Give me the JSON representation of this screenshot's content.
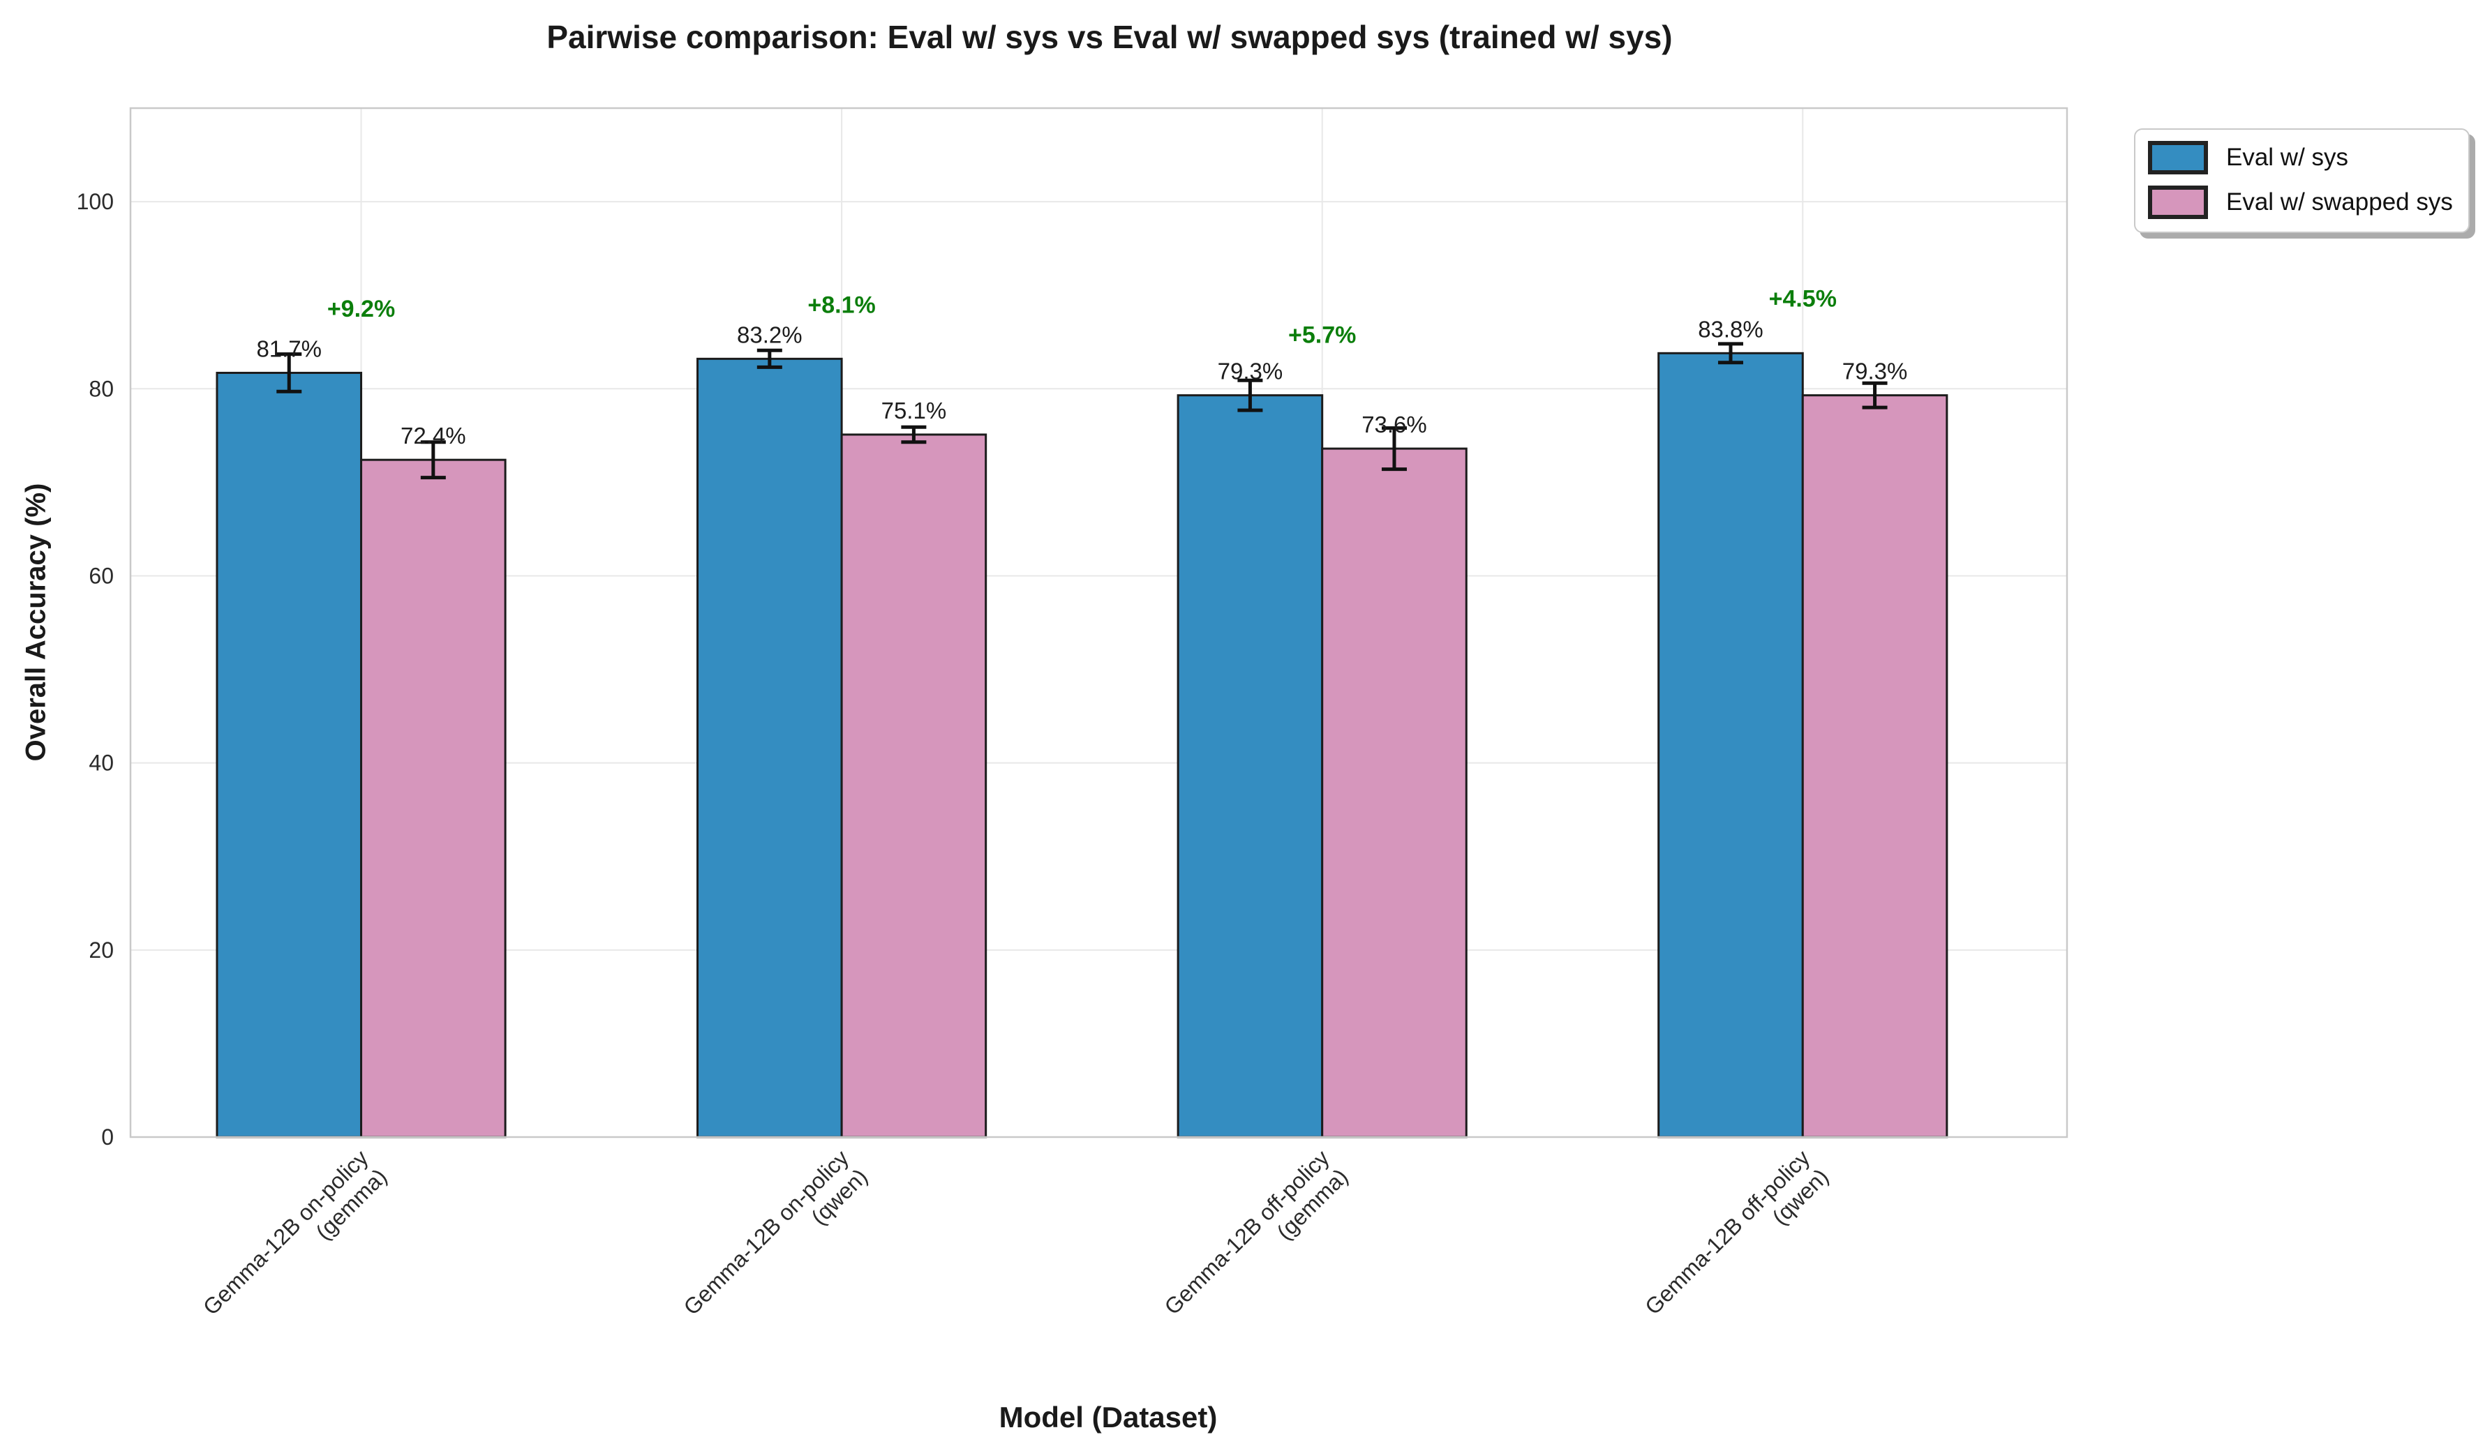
{
  "chart_data": {
    "type": "bar",
    "title": "Pairwise comparison: Eval w/ sys vs Eval w/ swapped sys (trained w/ sys)",
    "xlabel": "Model (Dataset)",
    "ylabel": "Overall Accuracy (%)",
    "ylim": [
      0,
      110
    ],
    "yticks": [
      0,
      20,
      40,
      60,
      80,
      100
    ],
    "grid": true,
    "legend_position": "outside upper right",
    "categories": [
      "Gemma-12B on-policy\n(gemma)",
      "Gemma-12B on-policy\n(qwen)",
      "Gemma-12B off-policy\n(gemma)",
      "Gemma-12B off-policy\n(qwen)"
    ],
    "series": [
      {
        "name": "Eval w/ sys",
        "color": "#348DC1",
        "values": [
          81.7,
          83.2,
          79.3,
          83.8
        ],
        "errors": [
          2.0,
          0.9,
          1.6,
          1.0
        ],
        "labels": [
          "81.7%",
          "83.2%",
          "79.3%",
          "83.8%"
        ]
      },
      {
        "name": "Eval w/ swapped sys",
        "color": "#D696BC",
        "values": [
          72.4,
          75.1,
          73.6,
          79.3
        ],
        "errors": [
          1.9,
          0.8,
          2.2,
          1.3
        ],
        "labels": [
          "72.4%",
          "75.1%",
          "73.6%",
          "79.3%"
        ]
      }
    ],
    "deltas": {
      "values": [
        "+9.2%",
        "+8.1%",
        "+5.7%",
        "+4.5%"
      ],
      "color": "#0B7E0B"
    },
    "style": {
      "bar_edge_color": "#1c1c1c",
      "error_bar_color": "#111111",
      "grid_color": "#e8e8e8",
      "plot_border_color": "#c9c9c9",
      "tick_label_color": "#2b2b2b",
      "value_label_color": "#1d1d1d",
      "background": "#ffffff"
    }
  }
}
